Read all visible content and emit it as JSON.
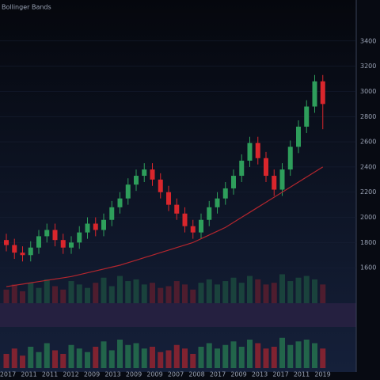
{
  "chart_data": {
    "type": "candlestick",
    "title": "Bollinger Bands",
    "open": [
      1820,
      1780,
      1720,
      1700,
      1760,
      1850,
      1900,
      1820,
      1760,
      1800,
      1880,
      1950,
      1900,
      1980,
      2080,
      2150,
      2260,
      2330,
      2380,
      2300,
      2200,
      2100,
      2030,
      1930,
      1880,
      1980,
      2080,
      2150,
      2230,
      2330,
      2450,
      2590,
      2470,
      2330,
      2220,
      2380,
      2560,
      2720,
      2880,
      3080
    ],
    "high": [
      1870,
      1830,
      1770,
      1810,
      1900,
      1950,
      1950,
      1870,
      1850,
      1930,
      2000,
      2000,
      2030,
      2130,
      2200,
      2310,
      2380,
      2430,
      2430,
      2350,
      2250,
      2150,
      2080,
      1980,
      2030,
      2130,
      2200,
      2280,
      2380,
      2500,
      2640,
      2640,
      2520,
      2380,
      2430,
      2610,
      2770,
      2930,
      3130,
      3130
    ],
    "low": [
      1730,
      1670,
      1650,
      1650,
      1710,
      1800,
      1770,
      1710,
      1710,
      1750,
      1830,
      1850,
      1850,
      1930,
      2030,
      2100,
      2210,
      2280,
      2250,
      2150,
      2050,
      1980,
      1880,
      1830,
      1830,
      1930,
      2030,
      2100,
      2180,
      2280,
      2400,
      2420,
      2280,
      2170,
      2170,
      2330,
      2510,
      2670,
      2830,
      2700
    ],
    "close": [
      1780,
      1720,
      1700,
      1760,
      1850,
      1900,
      1820,
      1760,
      1800,
      1880,
      1950,
      1900,
      1980,
      2080,
      2150,
      2260,
      2330,
      2380,
      2300,
      2200,
      2100,
      2030,
      1930,
      1880,
      1980,
      2080,
      2150,
      2230,
      2330,
      2450,
      2590,
      2470,
      2330,
      2220,
      2380,
      2560,
      2720,
      2880,
      3080,
      2900
    ],
    "band_line": [
      1450,
      1460,
      1470,
      1480,
      1490,
      1500,
      1510,
      1520,
      1530,
      1545,
      1560,
      1575,
      1590,
      1605,
      1620,
      1640,
      1660,
      1680,
      1700,
      1720,
      1740,
      1760,
      1780,
      1800,
      1830,
      1860,
      1890,
      1920,
      1960,
      2000,
      2040,
      2080,
      2120,
      2160,
      2200,
      2240,
      2280,
      2320,
      2360,
      2400
    ],
    "volume": [
      40,
      55,
      35,
      60,
      45,
      70,
      50,
      40,
      65,
      55,
      45,
      60,
      75,
      50,
      80,
      65,
      70,
      55,
      60,
      45,
      50,
      65,
      55,
      40,
      60,
      70,
      55,
      65,
      75,
      60,
      80,
      70,
      55,
      60,
      85,
      65,
      75,
      80,
      70,
      55
    ],
    "ylim": [
      1400,
      3600
    ],
    "yticks": [
      1600,
      1800,
      2000,
      2200,
      2400,
      2600,
      2800,
      3000,
      3200,
      3400
    ],
    "volume_ylim": [
      0,
      100
    ],
    "up_color": "#2e9e5b",
    "down_color": "#d9262c",
    "band_color": "#b3262e",
    "x_labels": [
      "2017",
      "2011",
      "2011",
      "2012",
      "2009",
      "2013",
      "2009",
      "2009",
      "2007",
      "2008",
      "2017",
      "2009",
      "2013",
      "2017",
      "2011",
      "2019"
    ]
  }
}
